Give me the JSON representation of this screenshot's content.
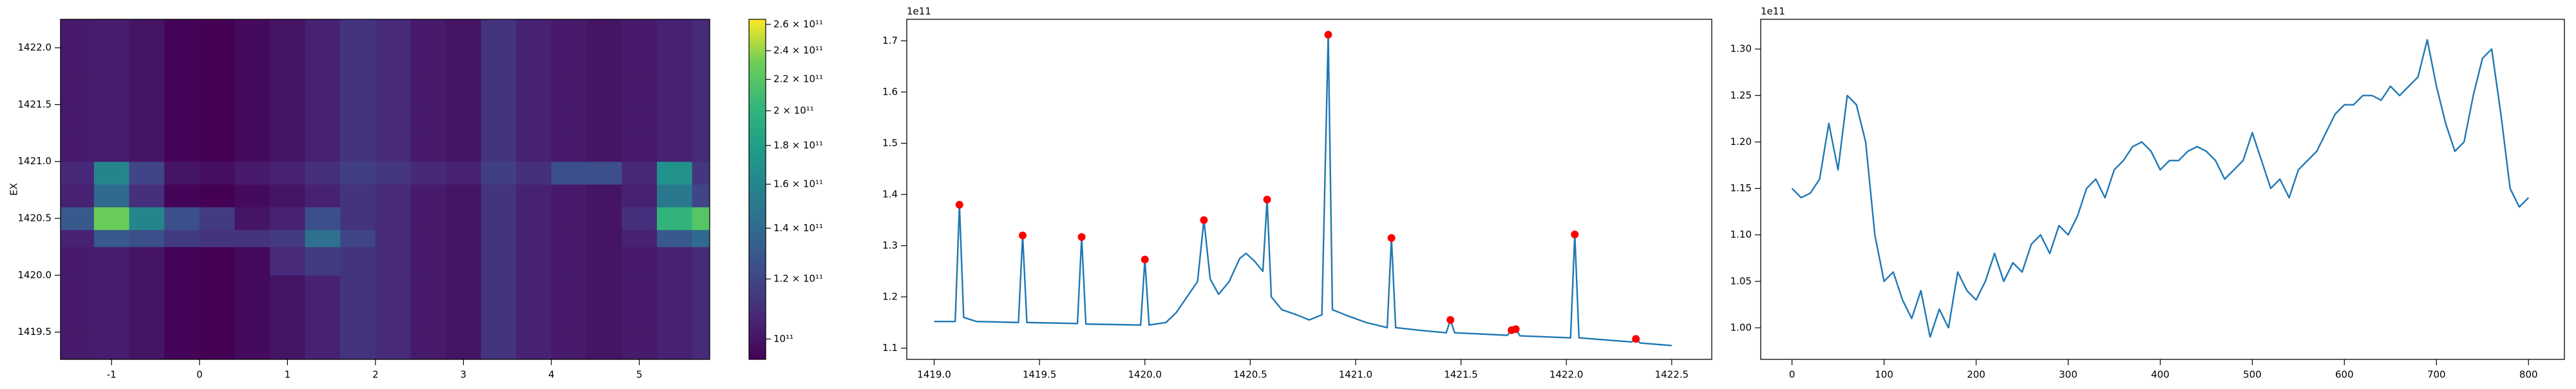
{
  "chart_data": [
    {
      "type": "heatmap",
      "ylabel": "EX",
      "xlim": [
        -1.58,
        5.8
      ],
      "xticks": [
        -1,
        0,
        1,
        2,
        3,
        4,
        5
      ],
      "ylim": [
        1419.26,
        1422.25
      ],
      "yticks": [
        {
          "value": 1419.5,
          "label": "1419.5"
        },
        {
          "value": 1420.0,
          "label": "1420.0"
        },
        {
          "value": 1420.5,
          "label": "1420.5"
        },
        {
          "value": 1421.0,
          "label": "1421.0"
        },
        {
          "value": 1421.5,
          "label": "1421.5"
        },
        {
          "value": 1422.0,
          "label": "1422.0"
        }
      ],
      "x_edges": [
        -1.58,
        -1.2,
        -0.8,
        -0.4,
        0,
        0.4,
        0.8,
        1.2,
        1.6,
        2.0,
        2.4,
        2.8,
        3.2,
        3.6,
        4.0,
        4.4,
        4.8,
        5.2,
        5.6,
        5.8
      ],
      "y_edges": [
        1419.26,
        1419.5,
        1419.75,
        1420,
        1420.25,
        1420.4,
        1420.6,
        1420.8,
        1421.0,
        1421.25,
        1421.5,
        1421.75,
        1422,
        1422.25
      ],
      "colormap": "viridis",
      "color_log": true,
      "clim": [
        94000000000.0,
        264000000000.0
      ],
      "cticks": [
        {
          "value": 100000000000.0,
          "label": "10¹¹"
        },
        {
          "value": 120000000000.0,
          "label": "1.2 × 10¹¹"
        },
        {
          "value": 140000000000.0,
          "label": "1.4 × 10¹¹"
        },
        {
          "value": 160000000000.0,
          "label": "1.6 × 10¹¹"
        },
        {
          "value": 180000000000.0,
          "label": "1.8 × 10¹¹"
        },
        {
          "value": 200000000000.0,
          "label": "2 × 10¹¹"
        },
        {
          "value": 220000000000.0,
          "label": "2.2 × 10¹¹"
        },
        {
          "value": 240000000000.0,
          "label": "2.4 × 10¹¹"
        },
        {
          "value": 260000000000.0,
          "label": "2.6 × 10¹¹"
        }
      ],
      "z": [
        [
          102000000000.0,
          103000000000.0,
          100000000000.0,
          95000000000.0,
          93000000000.0,
          97000000000.0,
          100000000000.0,
          105000000000.0,
          112000000000.0,
          108000000000.0,
          102000000000.0,
          100000000000.0,
          112000000000.0,
          105000000000.0,
          102000000000.0,
          100000000000.0,
          102000000000.0,
          105000000000.0,
          108000000000.0
        ],
        [
          102000000000.0,
          103000000000.0,
          100000000000.0,
          95000000000.0,
          93000000000.0,
          97000000000.0,
          100000000000.0,
          105000000000.0,
          112000000000.0,
          108000000000.0,
          102000000000.0,
          100000000000.0,
          112000000000.0,
          105000000000.0,
          102000000000.0,
          100000000000.0,
          102000000000.0,
          105000000000.0,
          108000000000.0
        ],
        [
          102000000000.0,
          103000000000.0,
          100000000000.0,
          95000000000.0,
          93000000000.0,
          97000000000.0,
          100000000000.0,
          105000000000.0,
          112000000000.0,
          108000000000.0,
          102000000000.0,
          100000000000.0,
          112000000000.0,
          105000000000.0,
          102000000000.0,
          100000000000.0,
          102000000000.0,
          105000000000.0,
          108000000000.0
        ],
        [
          102000000000.0,
          103000000000.0,
          100000000000.0,
          95000000000.0,
          93000000000.0,
          97000000000.0,
          108000000000.0,
          115000000000.0,
          112000000000.0,
          108000000000.0,
          102000000000.0,
          100000000000.0,
          112000000000.0,
          105000000000.0,
          102000000000.0,
          100000000000.0,
          102000000000.0,
          105000000000.0,
          108000000000.0
        ],
        [
          105000000000.0,
          130000000000.0,
          125000000000.0,
          115000000000.0,
          112000000000.0,
          112000000000.0,
          115000000000.0,
          145000000000.0,
          120000000000.0,
          108000000000.0,
          102000000000.0,
          100000000000.0,
          112000000000.0,
          105000000000.0,
          102000000000.0,
          100000000000.0,
          105000000000.0,
          130000000000.0,
          140000000000.0
        ],
        [
          130000000000.0,
          230000000000.0,
          160000000000.0,
          125000000000.0,
          115000000000.0,
          100000000000.0,
          105000000000.0,
          125000000000.0,
          112000000000.0,
          108000000000.0,
          102000000000.0,
          100000000000.0,
          112000000000.0,
          105000000000.0,
          102000000000.0,
          100000000000.0,
          110000000000.0,
          200000000000.0,
          220000000000.0
        ],
        [
          105000000000.0,
          140000000000.0,
          110000000000.0,
          95000000000.0,
          93000000000.0,
          97000000000.0,
          100000000000.0,
          105000000000.0,
          112000000000.0,
          108000000000.0,
          102000000000.0,
          100000000000.0,
          112000000000.0,
          105000000000.0,
          102000000000.0,
          100000000000.0,
          105000000000.0,
          150000000000.0,
          120000000000.0
        ],
        [
          107000000000.0,
          160000000000.0,
          120000000000.0,
          100000000000.0,
          98000000000.0,
          102000000000.0,
          105000000000.0,
          110000000000.0,
          117000000000.0,
          113000000000.0,
          107000000000.0,
          105000000000.0,
          117000000000.0,
          110000000000.0,
          125000000000.0,
          125000000000.0,
          107000000000.0,
          170000000000.0,
          113000000000.0
        ],
        [
          102000000000.0,
          103000000000.0,
          100000000000.0,
          95000000000.0,
          93000000000.0,
          97000000000.0,
          100000000000.0,
          105000000000.0,
          112000000000.0,
          108000000000.0,
          102000000000.0,
          100000000000.0,
          112000000000.0,
          105000000000.0,
          102000000000.0,
          100000000000.0,
          102000000000.0,
          105000000000.0,
          108000000000.0
        ],
        [
          102000000000.0,
          103000000000.0,
          100000000000.0,
          95000000000.0,
          93000000000.0,
          97000000000.0,
          100000000000.0,
          105000000000.0,
          112000000000.0,
          108000000000.0,
          102000000000.0,
          100000000000.0,
          112000000000.0,
          105000000000.0,
          102000000000.0,
          100000000000.0,
          102000000000.0,
          105000000000.0,
          108000000000.0
        ],
        [
          102000000000.0,
          103000000000.0,
          100000000000.0,
          95000000000.0,
          93000000000.0,
          97000000000.0,
          100000000000.0,
          105000000000.0,
          112000000000.0,
          108000000000.0,
          102000000000.0,
          100000000000.0,
          112000000000.0,
          105000000000.0,
          102000000000.0,
          100000000000.0,
          102000000000.0,
          105000000000.0,
          108000000000.0
        ],
        [
          102000000000.0,
          103000000000.0,
          100000000000.0,
          95000000000.0,
          93000000000.0,
          97000000000.0,
          100000000000.0,
          105000000000.0,
          112000000000.0,
          108000000000.0,
          102000000000.0,
          100000000000.0,
          112000000000.0,
          105000000000.0,
          102000000000.0,
          100000000000.0,
          102000000000.0,
          105000000000.0,
          108000000000.0
        ],
        [
          102000000000.0,
          103000000000.0,
          100000000000.0,
          95000000000.0,
          93000000000.0,
          97000000000.0,
          100000000000.0,
          105000000000.0,
          112000000000.0,
          108000000000.0,
          102000000000.0,
          100000000000.0,
          112000000000.0,
          105000000000.0,
          102000000000.0,
          100000000000.0,
          102000000000.0,
          105000000000.0,
          108000000000.0
        ]
      ]
    },
    {
      "type": "line",
      "offset_text": "1e11",
      "xlim": [
        1418.87,
        1422.69
      ],
      "xticks": [
        {
          "value": 1419.0,
          "label": "1419.0"
        },
        {
          "value": 1419.5,
          "label": "1419.5"
        },
        {
          "value": 1420.0,
          "label": "1420.0"
        },
        {
          "value": 1420.5,
          "label": "1420.5"
        },
        {
          "value": 1421.0,
          "label": "1421.0"
        },
        {
          "value": 1421.5,
          "label": "1421.5"
        },
        {
          "value": 1422.0,
          "label": "1422.0"
        },
        {
          "value": 1422.5,
          "label": "1422.5"
        }
      ],
      "ylim": [
        1.078,
        1.742
      ],
      "yticks": [
        1.1,
        1.2,
        1.3,
        1.4,
        1.5,
        1.6,
        1.7
      ],
      "series": [
        {
          "style": "line",
          "color": "#1f77b4",
          "x": [
            1419.0,
            1419.1,
            1419.12,
            1419.14,
            1419.2,
            1419.4,
            1419.42,
            1419.44,
            1419.68,
            1419.7,
            1419.72,
            1419.98,
            1420.0,
            1420.02,
            1420.1,
            1420.15,
            1420.2,
            1420.25,
            1420.28,
            1420.31,
            1420.35,
            1420.4,
            1420.45,
            1420.48,
            1420.52,
            1420.56,
            1420.58,
            1420.6,
            1420.65,
            1420.72,
            1420.78,
            1420.84,
            1420.87,
            1420.89,
            1420.95,
            1421.05,
            1421.15,
            1421.17,
            1421.19,
            1421.3,
            1421.43,
            1421.45,
            1421.47,
            1421.72,
            1421.74,
            1421.76,
            1421.78,
            1422.02,
            1422.04,
            1422.06,
            1422.31,
            1422.33,
            1422.35,
            1422.5
          ],
          "values": [
            1.152,
            1.152,
            1.38,
            1.16,
            1.152,
            1.15,
            1.32,
            1.15,
            1.148,
            1.317,
            1.147,
            1.145,
            1.273,
            1.145,
            1.15,
            1.17,
            1.2,
            1.23,
            1.35,
            1.235,
            1.205,
            1.23,
            1.275,
            1.285,
            1.27,
            1.25,
            1.39,
            1.2,
            1.175,
            1.165,
            1.155,
            1.165,
            1.712,
            1.175,
            1.165,
            1.15,
            1.14,
            1.315,
            1.14,
            1.135,
            1.13,
            1.155,
            1.13,
            1.125,
            1.135,
            1.137,
            1.124,
            1.12,
            1.322,
            1.12,
            1.112,
            1.118,
            1.11,
            1.105
          ]
        },
        {
          "style": "markers",
          "color": "#ff0000",
          "x": [
            1419.12,
            1419.42,
            1419.7,
            1420.0,
            1420.28,
            1420.58,
            1420.87,
            1421.17,
            1421.45,
            1421.74,
            1421.76,
            1422.04,
            1422.33
          ],
          "values": [
            1.38,
            1.32,
            1.317,
            1.273,
            1.35,
            1.39,
            1.712,
            1.315,
            1.155,
            1.135,
            1.137,
            1.322,
            1.118
          ]
        }
      ]
    },
    {
      "type": "line",
      "offset_text": "1e11",
      "xlim": [
        -34,
        839
      ],
      "xticks": [
        0,
        100,
        200,
        300,
        400,
        500,
        600,
        700,
        800
      ],
      "ylim": [
        0.966,
        1.332
      ],
      "yticks": [
        {
          "value": 1.0,
          "label": "1.00"
        },
        {
          "value": 1.05,
          "label": "1.05"
        },
        {
          "value": 1.1,
          "label": "1.10"
        },
        {
          "value": 1.15,
          "label": "1.15"
        },
        {
          "value": 1.2,
          "label": "1.20"
        },
        {
          "value": 1.25,
          "label": "1.25"
        },
        {
          "value": 1.3,
          "label": "1.30"
        }
      ],
      "series": [
        {
          "style": "line",
          "color": "#1f77b4",
          "x": [
            0,
            10,
            20,
            30,
            40,
            50,
            60,
            70,
            80,
            90,
            100,
            110,
            120,
            130,
            140,
            150,
            160,
            170,
            180,
            190,
            200,
            210,
            220,
            230,
            240,
            250,
            260,
            270,
            280,
            290,
            300,
            310,
            320,
            330,
            340,
            350,
            360,
            370,
            380,
            390,
            400,
            410,
            420,
            430,
            440,
            450,
            460,
            470,
            480,
            490,
            500,
            510,
            520,
            530,
            540,
            550,
            560,
            570,
            580,
            590,
            600,
            610,
            620,
            630,
            640,
            650,
            660,
            670,
            680,
            690,
            700,
            710,
            720,
            730,
            740,
            750,
            760,
            770,
            780,
            790,
            800
          ],
          "values": [
            1.15,
            1.14,
            1.145,
            1.16,
            1.22,
            1.17,
            1.25,
            1.24,
            1.2,
            1.1,
            1.05,
            1.06,
            1.03,
            1.01,
            1.04,
            0.99,
            1.02,
            1.0,
            1.06,
            1.04,
            1.03,
            1.05,
            1.08,
            1.05,
            1.07,
            1.06,
            1.09,
            1.1,
            1.08,
            1.11,
            1.1,
            1.12,
            1.15,
            1.16,
            1.14,
            1.17,
            1.18,
            1.195,
            1.2,
            1.19,
            1.17,
            1.18,
            1.18,
            1.19,
            1.195,
            1.19,
            1.18,
            1.16,
            1.17,
            1.18,
            1.21,
            1.18,
            1.15,
            1.16,
            1.14,
            1.17,
            1.18,
            1.19,
            1.21,
            1.23,
            1.24,
            1.24,
            1.25,
            1.25,
            1.245,
            1.26,
            1.25,
            1.26,
            1.27,
            1.31,
            1.26,
            1.22,
            1.19,
            1.2,
            1.25,
            1.29,
            1.3,
            1.23,
            1.15,
            1.13,
            1.14
          ]
        }
      ]
    }
  ]
}
